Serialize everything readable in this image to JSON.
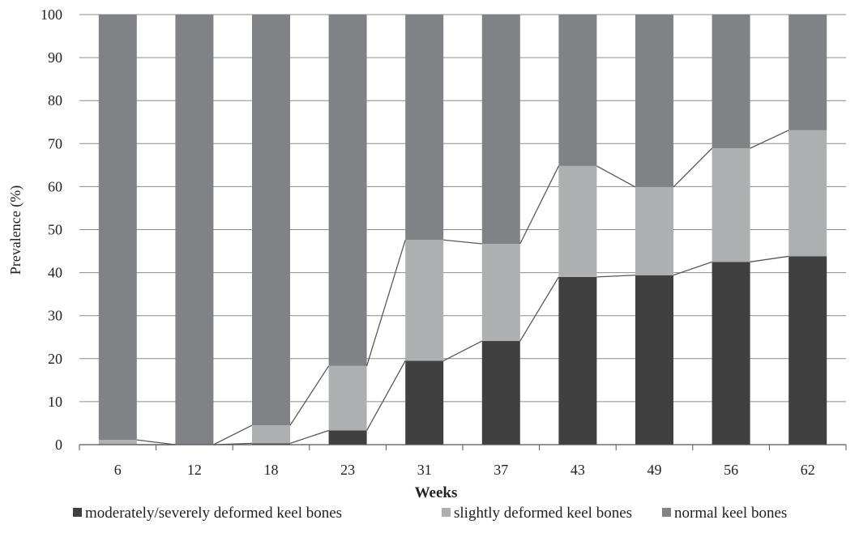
{
  "chart_data": {
    "type": "bar",
    "stacked": true,
    "categories": [
      "6",
      "12",
      "18",
      "23",
      "31",
      "37",
      "43",
      "49",
      "56",
      "62"
    ],
    "series": [
      {
        "name": "moderately/severely deformed keel bones",
        "color": "#404040",
        "values": [
          0,
          0,
          0.3,
          3.3,
          19.5,
          24.1,
          39.0,
          39.4,
          42.5,
          43.8
        ]
      },
      {
        "name": "slightly deformed keel bones",
        "color": "#aeafb1",
        "values": [
          1.1,
          0,
          4.2,
          15.0,
          28.1,
          22.6,
          25.8,
          20.5,
          26.4,
          29.3
        ]
      },
      {
        "name": "normal keel bones",
        "color": "#818286",
        "values": [
          98.9,
          100,
          95.5,
          81.7,
          52.4,
          53.3,
          35.2,
          40.1,
          31.1,
          26.9
        ]
      }
    ],
    "series_lines": true,
    "xlabel": "Weeks",
    "ylabel": "Prevalence (%)",
    "ylim": [
      0,
      100
    ],
    "yticks": [
      0,
      10,
      20,
      30,
      40,
      50,
      60,
      70,
      80,
      90,
      100
    ],
    "grid": true,
    "legend_position": "bottom"
  }
}
